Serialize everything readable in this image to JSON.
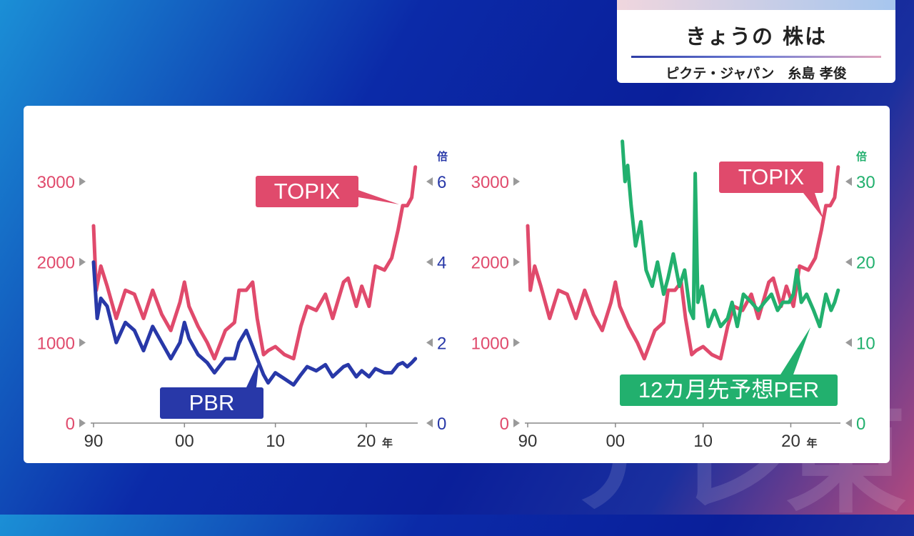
{
  "header": {
    "title": "きょうの 株は",
    "subtitle": "ピクテ・ジャパン　糸島 孝俊"
  },
  "watermark": "テレ東",
  "colors": {
    "topix": "#e04a6c",
    "pbr": "#2838a8",
    "per": "#22b06e",
    "axis": "#555555"
  },
  "chart_data": [
    {
      "type": "line",
      "x_ticks": [
        "90",
        "00",
        "10",
        "20"
      ],
      "x_tick_values": [
        1990,
        2000,
        2010,
        2020
      ],
      "x_unit": "年",
      "xlim": [
        1990,
        2025.5
      ],
      "left_axis": {
        "ticks": [
          "0",
          "1000",
          "2000",
          "3000"
        ],
        "ylim": [
          0,
          3000
        ]
      },
      "right_axis": {
        "ticks": [
          "0",
          "2",
          "4",
          "6"
        ],
        "ylim": [
          0,
          6
        ],
        "unit": "倍"
      },
      "series": [
        {
          "name": "TOPIX",
          "axis": "left",
          "x": [
            1990,
            1990.3,
            1990.8,
            1991.5,
            1992.5,
            1993.5,
            1994.5,
            1995.5,
            1996.5,
            1997.5,
            1998.5,
            1999.5,
            2000.0,
            2000.5,
            2001.5,
            2002.5,
            2003.3,
            2004.5,
            2005.5,
            2006.0,
            2006.8,
            2007.5,
            2008.0,
            2008.7,
            2009.2,
            2010.0,
            2011.0,
            2012.0,
            2012.8,
            2013.5,
            2014.5,
            2015.5,
            2016.3,
            2017.5,
            2018.0,
            2018.9,
            2019.5,
            2020.3,
            2021.0,
            2022.0,
            2022.8,
            2023.5,
            2024.0,
            2024.5,
            2025.0,
            2025.4
          ],
          "y": [
            2450,
            1650,
            1950,
            1700,
            1300,
            1650,
            1600,
            1300,
            1650,
            1350,
            1150,
            1500,
            1750,
            1450,
            1200,
            1000,
            800,
            1150,
            1250,
            1650,
            1650,
            1750,
            1300,
            850,
            900,
            950,
            850,
            800,
            1200,
            1450,
            1400,
            1600,
            1300,
            1750,
            1800,
            1450,
            1700,
            1450,
            1950,
            1900,
            2050,
            2400,
            2700,
            2700,
            2800,
            3180
          ]
        },
        {
          "name": "PBR",
          "axis": "right",
          "x": [
            1990,
            1990.4,
            1990.8,
            1991.5,
            1992.5,
            1993.5,
            1994.5,
            1995.5,
            1996.5,
            1997.5,
            1998.5,
            1999.5,
            2000.0,
            2000.5,
            2001.5,
            2002.5,
            2003.3,
            2004.5,
            2005.5,
            2006.0,
            2006.8,
            2007.5,
            2008.0,
            2008.7,
            2009.2,
            2010.0,
            2011.0,
            2012.0,
            2012.8,
            2013.5,
            2014.5,
            2015.5,
            2016.3,
            2017.5,
            2018.0,
            2018.9,
            2019.5,
            2020.3,
            2021.0,
            2022.0,
            2022.8,
            2023.5,
            2024.0,
            2024.5,
            2025.0,
            2025.4
          ],
          "y": [
            4.0,
            2.6,
            3.1,
            2.9,
            2.0,
            2.5,
            2.3,
            1.8,
            2.4,
            2.0,
            1.6,
            2.0,
            2.5,
            2.1,
            1.7,
            1.5,
            1.25,
            1.6,
            1.6,
            2.0,
            2.3,
            1.9,
            1.6,
            1.2,
            1.0,
            1.25,
            1.1,
            0.95,
            1.2,
            1.4,
            1.3,
            1.45,
            1.15,
            1.4,
            1.45,
            1.15,
            1.3,
            1.15,
            1.35,
            1.25,
            1.25,
            1.45,
            1.5,
            1.4,
            1.5,
            1.6
          ]
        }
      ],
      "labels": [
        {
          "text": "TOPIX",
          "series": "TOPIX"
        },
        {
          "text": "PBR",
          "series": "PBR"
        }
      ]
    },
    {
      "type": "line",
      "x_ticks": [
        "90",
        "00",
        "10",
        "20"
      ],
      "x_tick_values": [
        1990,
        2000,
        2010,
        2020
      ],
      "x_unit": "年",
      "xlim": [
        1990,
        2025.5
      ],
      "left_axis": {
        "ticks": [
          "0",
          "1000",
          "2000",
          "3000"
        ],
        "ylim": [
          0,
          3000
        ]
      },
      "right_axis": {
        "ticks": [
          "0",
          "10",
          "20",
          "30"
        ],
        "ylim": [
          0,
          30
        ],
        "unit": "倍"
      },
      "series": [
        {
          "name": "TOPIX",
          "axis": "left",
          "x": [
            1990,
            1990.3,
            1990.8,
            1991.5,
            1992.5,
            1993.5,
            1994.5,
            1995.5,
            1996.5,
            1997.5,
            1998.5,
            1999.5,
            2000.0,
            2000.5,
            2001.5,
            2002.5,
            2003.3,
            2004.5,
            2005.5,
            2006.0,
            2006.8,
            2007.5,
            2008.0,
            2008.7,
            2009.2,
            2010.0,
            2011.0,
            2012.0,
            2012.8,
            2013.5,
            2014.5,
            2015.5,
            2016.3,
            2017.5,
            2018.0,
            2018.9,
            2019.5,
            2020.3,
            2021.0,
            2022.0,
            2022.8,
            2023.5,
            2024.0,
            2024.5,
            2025.0,
            2025.4
          ],
          "y": [
            2450,
            1650,
            1950,
            1700,
            1300,
            1650,
            1600,
            1300,
            1650,
            1350,
            1150,
            1500,
            1750,
            1450,
            1200,
            1000,
            800,
            1150,
            1250,
            1650,
            1650,
            1750,
            1300,
            850,
            900,
            950,
            850,
            800,
            1200,
            1450,
            1400,
            1600,
            1300,
            1750,
            1800,
            1450,
            1700,
            1450,
            1950,
            1900,
            2050,
            2400,
            2700,
            2700,
            2800,
            3180
          ]
        },
        {
          "name": "12カ月先予想PER",
          "axis": "right",
          "x": [
            2000.8,
            2001.1,
            2001.4,
            2001.8,
            2002.3,
            2002.9,
            2003.5,
            2004.2,
            2004.8,
            2005.5,
            2006.0,
            2006.6,
            2007.3,
            2007.9,
            2008.5,
            2008.9,
            2009.1,
            2009.4,
            2009.9,
            2010.6,
            2011.3,
            2012.0,
            2012.8,
            2013.3,
            2013.9,
            2014.6,
            2015.5,
            2016.3,
            2017.0,
            2017.8,
            2018.5,
            2019.1,
            2019.8,
            2020.3,
            2020.7,
            2021.2,
            2021.8,
            2022.6,
            2023.3,
            2024.0,
            2024.6,
            2025.0,
            2025.4
          ],
          "y": [
            35,
            30,
            32,
            27,
            22,
            25,
            19,
            17,
            20,
            16,
            18,
            21,
            17,
            19,
            14,
            13,
            31,
            15,
            17,
            12,
            14,
            12,
            13,
            15,
            12,
            16,
            15,
            14,
            15,
            16,
            14,
            15,
            15,
            16,
            19,
            15,
            16,
            14,
            12,
            16,
            14,
            15,
            16.5
          ]
        }
      ],
      "labels": [
        {
          "text": "TOPIX",
          "series": "TOPIX"
        },
        {
          "text": "12カ月先予想PER",
          "series": "12カ月先予想PER"
        }
      ]
    }
  ]
}
